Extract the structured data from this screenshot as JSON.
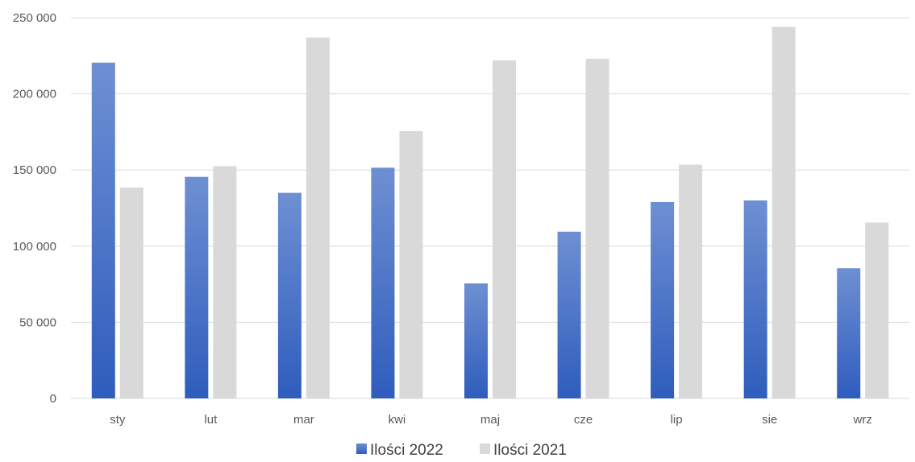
{
  "chart_data": {
    "type": "bar",
    "title": "",
    "xlabel": "",
    "ylabel": "",
    "categories": [
      "sty",
      "lut",
      "mar",
      "kwi",
      "maj",
      "cze",
      "lip",
      "sie",
      "wrz"
    ],
    "series": [
      {
        "name": "Ilości 2022",
        "values": [
          220500,
          145500,
          135000,
          151500,
          75500,
          109500,
          129000,
          130000,
          85500
        ],
        "color": "#4472C4"
      },
      {
        "name": "Ilości 2021",
        "values": [
          138500,
          152500,
          237000,
          175500,
          222000,
          223000,
          153500,
          244000,
          115500
        ],
        "color": "#D9D9D9"
      }
    ],
    "ylim": [
      0,
      250000
    ],
    "yticks": [
      0,
      50000,
      100000,
      150000,
      200000,
      250000
    ],
    "ytick_labels": [
      "0",
      "50 000",
      "100 000",
      "150 000",
      "200 000",
      "250 000"
    ],
    "grid": true,
    "legend_position": "bottom-center"
  }
}
